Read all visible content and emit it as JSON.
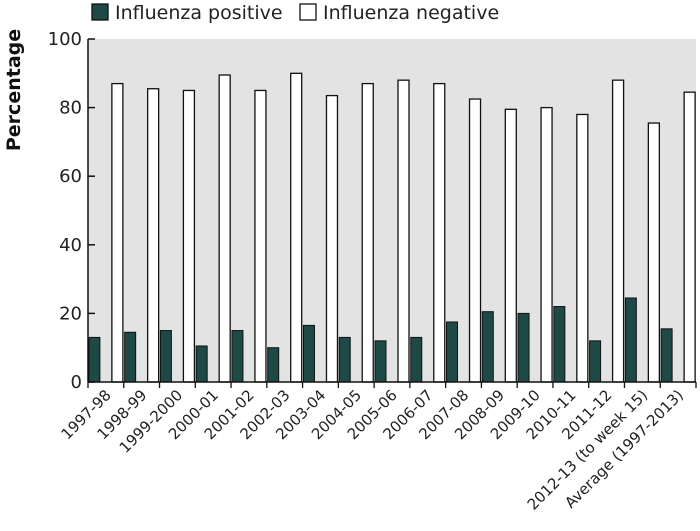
{
  "chart_data": {
    "type": "bar",
    "title": "",
    "xlabel": "",
    "ylabel": "Percentage",
    "ylim": [
      0,
      100
    ],
    "yticks": [
      0,
      20,
      40,
      60,
      80,
      100
    ],
    "grid": false,
    "legend_position": "top-left",
    "categories": [
      "1997-98",
      "1998-99",
      "1999-2000",
      "2000-01",
      "2001-02",
      "2002-03",
      "2003-04",
      "2004-05",
      "2005-06",
      "2006-07",
      "2007-08",
      "2008-09",
      "2009-10",
      "2010-11",
      "2011-12",
      "2012-13 (to week 15)",
      "Average (1997-2013)"
    ],
    "series": [
      {
        "name": "Influenza positive",
        "color": "#1d4a46",
        "values": [
          13,
          14.5,
          15,
          10.5,
          15,
          10,
          16.5,
          13,
          12,
          13,
          17.5,
          20.5,
          20,
          22,
          12,
          24.5,
          15.5
        ]
      },
      {
        "name": "Influenza negative",
        "color": "#ffffff",
        "values": [
          87,
          85.5,
          85,
          89.5,
          85,
          90,
          83.5,
          87,
          88,
          87,
          82.5,
          79.5,
          80,
          78,
          88,
          75.5,
          84.5
        ]
      }
    ]
  },
  "colors": {
    "plot_background": "#e3e3e3",
    "axis": "#111111"
  }
}
